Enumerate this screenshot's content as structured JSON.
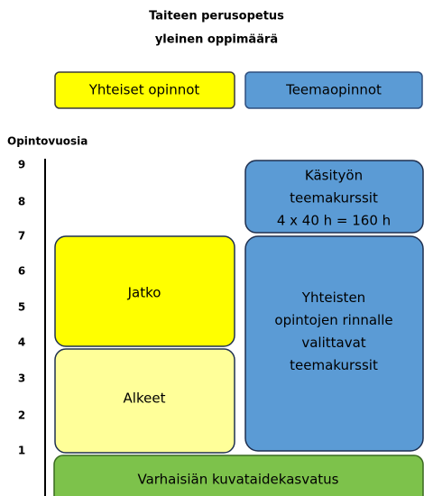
{
  "title": [
    "Taiteen perusopetus",
    "yleinen oppimäärä"
  ],
  "legend": [
    {
      "label": "Yhteiset opinnot"
    },
    {
      "label": "Teemaopinnot"
    }
  ],
  "axis": {
    "label": "Opintovuosia",
    "ticks": [
      9,
      8,
      7,
      6,
      5,
      4,
      3,
      2,
      1
    ]
  },
  "boxes": [
    {
      "lines": [
        "Käsityön",
        "teemakurssit",
        "4 x 40 h = 160 h"
      ]
    },
    {
      "lines": [
        "Jatko"
      ]
    },
    {
      "lines": [
        "Alkeet"
      ]
    },
    {
      "lines": [
        "Yhteisten",
        "opintojen rinnalle",
        "valittavat",
        "teemakurssit"
      ]
    },
    {
      "lines": [
        "Varhaisiän kuvataidekasvatus"
      ]
    }
  ]
}
